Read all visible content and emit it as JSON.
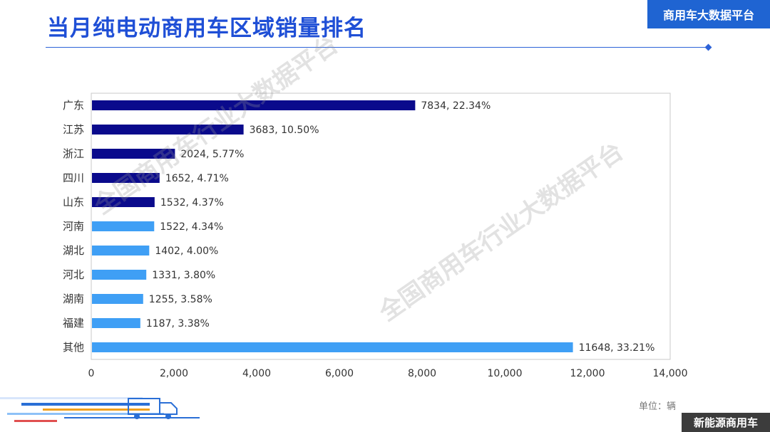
{
  "header": {
    "title": "当月纯电动商用车区域销量排名",
    "brand_badge": "商用车大数据平台"
  },
  "footer": {
    "unit": "单位：辆",
    "badge": "新能源商用车"
  },
  "watermark": {
    "text": "全国商用车行业大数据平台"
  },
  "colors": {
    "dark_bar": "#0a0a8c",
    "light_bar": "#3f9ff5",
    "accent": "#1f4fd6"
  },
  "chart_data": {
    "type": "bar",
    "orientation": "horizontal",
    "categories": [
      "广东",
      "江苏",
      "浙江",
      "四川",
      "山东",
      "河南",
      "湖北",
      "河北",
      "湖南",
      "福建",
      "其他"
    ],
    "values": [
      7834,
      3683,
      2024,
      1652,
      1532,
      1522,
      1402,
      1331,
      1255,
      1187,
      11648
    ],
    "data_labels": [
      "7834, 22.34%",
      "3683, 10.50%",
      "2024, 5.77%",
      "1652, 4.71%",
      "1532, 4.37%",
      "1522, 4.34%",
      "1402, 4.00%",
      "1331, 3.80%",
      "1255, 3.58%",
      "1187, 3.38%",
      "11648, 33.21%"
    ],
    "bar_color_group": [
      "dark",
      "dark",
      "dark",
      "dark",
      "dark",
      "light",
      "light",
      "light",
      "light",
      "light",
      "light"
    ],
    "xlim": [
      0,
      14000
    ],
    "x_ticks": [
      0,
      2000,
      4000,
      6000,
      8000,
      10000,
      12000,
      14000
    ],
    "x_tick_labels": [
      "0",
      "2,000",
      "4,000",
      "6,000",
      "8,000",
      "10,000",
      "12,000",
      "14,000"
    ],
    "grid": false
  }
}
